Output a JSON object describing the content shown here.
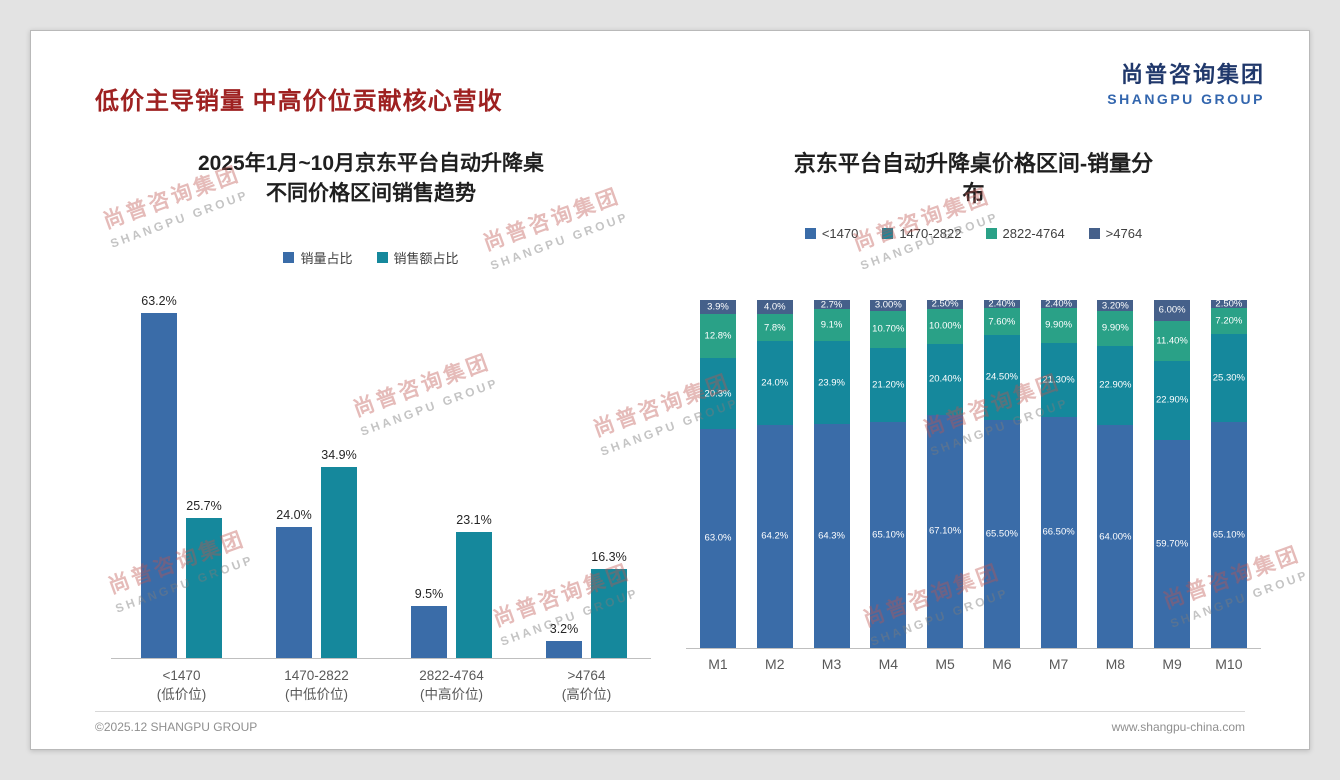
{
  "header": {
    "title": "低价主导销量 中高价位贡献核心营收",
    "logo_cn": "尚普咨询集团",
    "logo_en": "SHANGPU GROUP"
  },
  "footer": {
    "left": "©2025.12 SHANGPU GROUP",
    "right": "www.shangpu-china.com"
  },
  "watermark": {
    "line1": "尚普咨询集团",
    "line2": "SHANGPU GROUP"
  },
  "colors": {
    "title_red": "#9E2121",
    "blue": "#3A6CA8",
    "teal": "#15889C",
    "green": "#2AA187",
    "slate": "#45608A"
  },
  "chart_data": [
    {
      "type": "bar",
      "stacked": false,
      "title": "2025年1月~10月京东平台自动升降桌不同价格区间销售趋势",
      "title_lines": [
        "2025年1月~10月京东平台自动升降桌",
        "不同价格区间销售趋势"
      ],
      "categories": [
        "<1470",
        "1470-2822",
        "2822-4764",
        ">4764"
      ],
      "category_sublabels": [
        "(低价位)",
        "(中低价位)",
        "(中高价位)",
        "(高价位)"
      ],
      "series": [
        {
          "name": "销量占比",
          "color_key": "blue",
          "values": [
            63.2,
            24.0,
            9.5,
            3.2
          ],
          "labels": [
            "63.2%",
            "24.0%",
            "9.5%",
            "3.2%"
          ]
        },
        {
          "name": "销售额占比",
          "color_key": "teal",
          "values": [
            25.7,
            34.9,
            23.1,
            16.3
          ],
          "labels": [
            "25.7%",
            "34.9%",
            "23.1%",
            "16.3%"
          ]
        }
      ],
      "unit": "%",
      "ylim": [
        0,
        70
      ],
      "grid": false,
      "legend_position": "top",
      "data_labels": true
    },
    {
      "type": "bar",
      "stacked": true,
      "title": "京东平台自动升降桌价格区间-销量分布",
      "title_lines": [
        "京东平台自动升降桌价格区间-销量分",
        "布"
      ],
      "categories": [
        "M1",
        "M2",
        "M3",
        "M4",
        "M5",
        "M6",
        "M7",
        "M8",
        "M9",
        "M10"
      ],
      "series": [
        {
          "name": "<1470",
          "color_key": "blue",
          "values": [
            63.0,
            64.2,
            64.3,
            65.1,
            67.1,
            65.5,
            66.5,
            64.0,
            59.7,
            65.1
          ],
          "labels": [
            "63.0%",
            "64.2%",
            "64.3%",
            "65.10%",
            "67.10%",
            "65.50%",
            "66.50%",
            "64.00%",
            "59.70%",
            "65.10%"
          ]
        },
        {
          "name": "1470-2822",
          "color_key": "teal",
          "values": [
            20.3,
            24.0,
            23.9,
            21.2,
            20.4,
            24.5,
            21.3,
            22.9,
            22.9,
            25.3
          ],
          "labels": [
            "20.3%",
            "24.0%",
            "23.9%",
            "21.20%",
            "20.40%",
            "24.50%",
            "21.30%",
            "22.90%",
            "22.90%",
            "25.30%"
          ]
        },
        {
          "name": "2822-4764",
          "color_key": "green",
          "values": [
            12.8,
            7.8,
            9.1,
            10.7,
            10.0,
            7.6,
            9.9,
            9.9,
            11.4,
            7.2
          ],
          "labels": [
            "12.8%",
            "7.8%",
            "9.1%",
            "10.70%",
            "10.00%",
            "7.60%",
            "9.90%",
            "9.90%",
            "11.40%",
            "7.20%"
          ]
        },
        {
          "name": ">4764",
          "color_key": "slate",
          "values": [
            3.9,
            4.0,
            2.7,
            3.0,
            2.5,
            2.4,
            2.4,
            3.2,
            6.0,
            2.5
          ],
          "labels": [
            "3.9%",
            "4.0%",
            "2.7%",
            "3.00%",
            "2.50%",
            "2.40%",
            "2.40%",
            "3.20%",
            "6.00%",
            "2.50%"
          ]
        }
      ],
      "unit": "%",
      "ylim": [
        0,
        100
      ],
      "grid": false,
      "legend_position": "top",
      "data_labels": true
    }
  ]
}
